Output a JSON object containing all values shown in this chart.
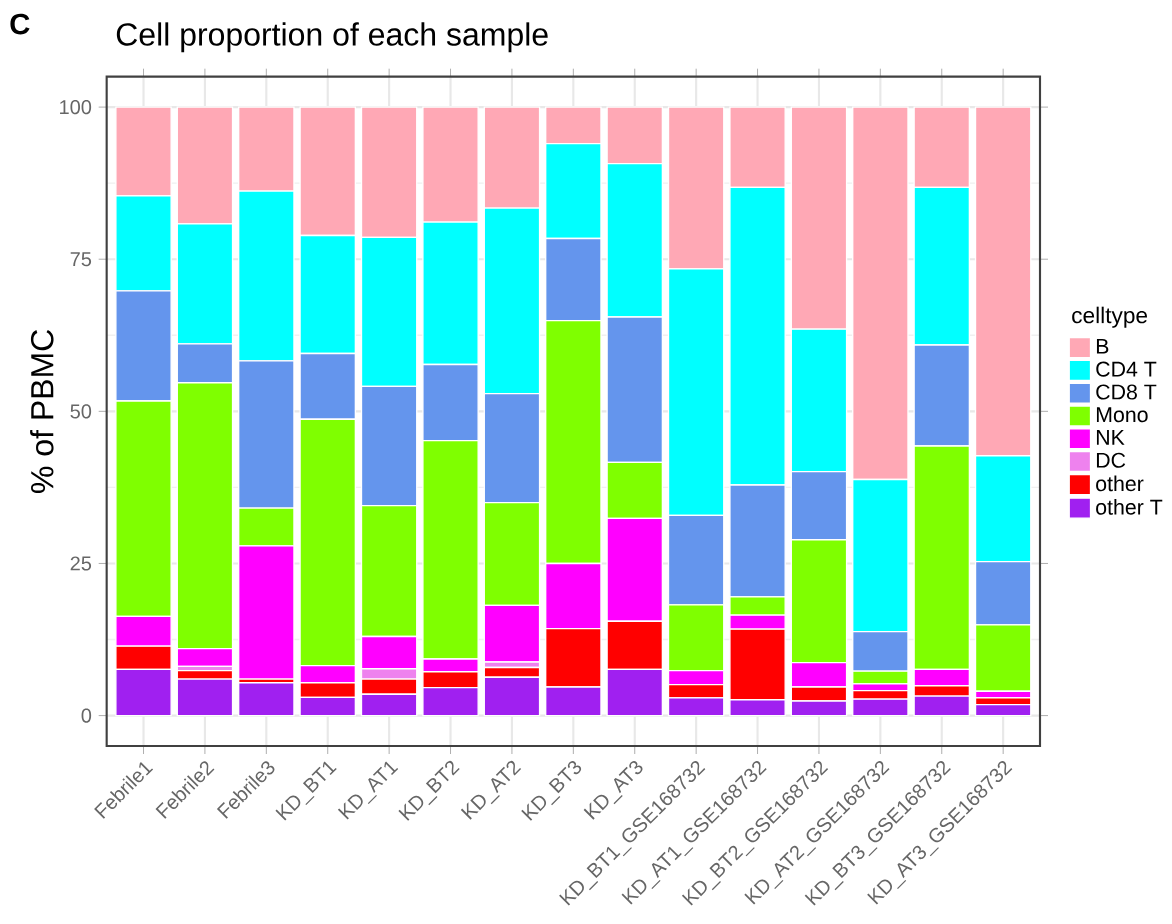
{
  "chart_data": {
    "type": "bar",
    "title": "Cell proportion of each sample",
    "ylabel": "% of PBMC",
    "legend_title": "celltype",
    "legend": "right",
    "grid": true,
    "stacked": true,
    "annotations": [
      "C"
    ],
    "categories": [
      "Febrile1",
      "Febrile2",
      "Febrile3",
      "KD_BT1",
      "KD_AT1",
      "KD_BT2",
      "KD_AT2",
      "KD_BT3",
      "KD_AT3",
      "KD_BT1_GSE168732",
      "KD_AT1_GSE168732",
      "KD_BT2_GSE168732",
      "KD_AT2_GSE168732",
      "KD_BT3_GSE168732",
      "KD_AT3_GSE168732"
    ],
    "ylim": [
      -5,
      105
    ],
    "yticks": [
      0,
      25,
      50,
      75,
      100
    ],
    "series": [
      {
        "name": "other T",
        "color": "#a020f0",
        "values": [
          7.6,
          6.0,
          5.4,
          3.0,
          3.5,
          4.6,
          6.3,
          4.7,
          7.6,
          2.9,
          2.6,
          2.4,
          2.7,
          3.2,
          1.8
        ]
      },
      {
        "name": "other",
        "color": "#ff0000",
        "values": [
          3.8,
          1.4,
          0.6,
          2.4,
          2.5,
          2.6,
          1.6,
          9.6,
          7.9,
          2.2,
          11.6,
          2.3,
          1.4,
          1.7,
          1.1
        ]
      },
      {
        "name": "DC",
        "color": "#ee82ee",
        "values": [
          0,
          0.7,
          0,
          0,
          1.7,
          0,
          0.9,
          0,
          0,
          0,
          0,
          0,
          0,
          0,
          0
        ]
      },
      {
        "name": "NK",
        "color": "#ff00ff",
        "values": [
          4.9,
          2.9,
          21.9,
          2.8,
          5.3,
          2.1,
          9.3,
          10.7,
          16.9,
          2.3,
          2.3,
          4.0,
          1.1,
          2.7,
          1.1
        ]
      },
      {
        "name": "Mono",
        "color": "#7fff00",
        "values": [
          35.4,
          43.7,
          6.2,
          40.5,
          21.5,
          35.9,
          16.9,
          39.9,
          9.2,
          10.8,
          3.0,
          20.2,
          2.1,
          36.7,
          10.9
        ]
      },
      {
        "name": "CD8 T",
        "color": "#6495ed",
        "values": [
          18.1,
          6.4,
          24.2,
          10.8,
          19.6,
          12.5,
          17.9,
          13.5,
          23.9,
          14.7,
          18.4,
          11.2,
          6.5,
          16.6,
          10.4
        ]
      },
      {
        "name": "CD4 T",
        "color": "#00ffff",
        "values": [
          15.6,
          19.7,
          27.9,
          19.4,
          24.5,
          23.4,
          30.5,
          15.6,
          25.2,
          40.5,
          48.9,
          23.4,
          25.0,
          25.9,
          17.4
        ]
      },
      {
        "name": "B",
        "color": "#ffa8b5",
        "values": [
          14.6,
          19.2,
          13.8,
          21.1,
          21.4,
          18.9,
          16.6,
          6.0,
          9.3,
          26.6,
          13.2,
          36.5,
          61.2,
          13.2,
          57.3
        ]
      }
    ]
  }
}
